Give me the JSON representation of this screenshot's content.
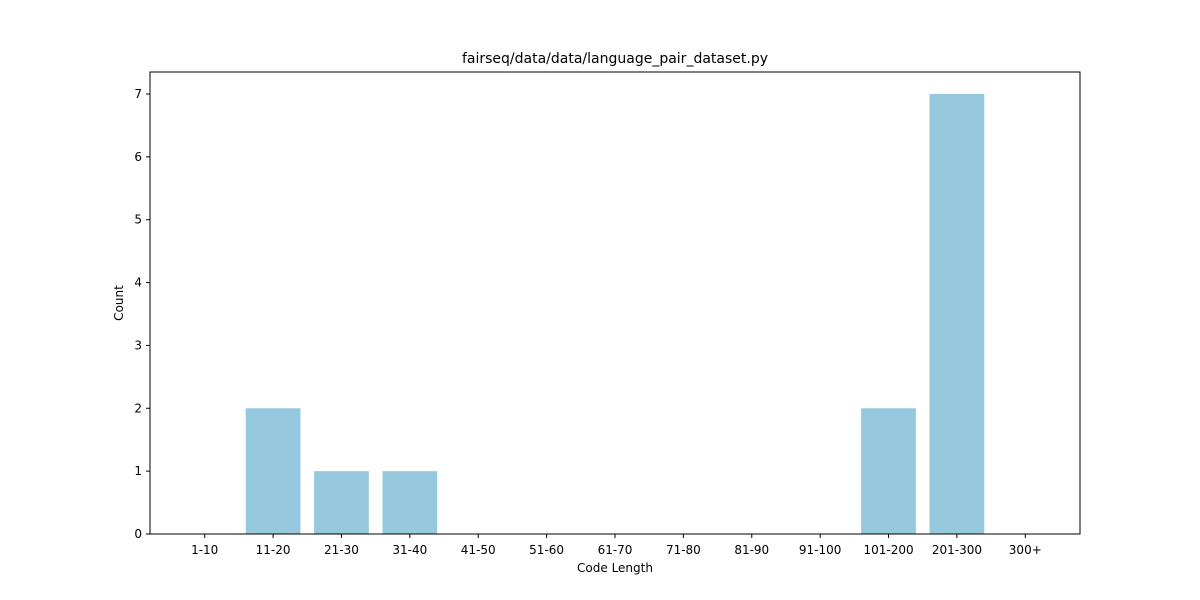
{
  "chart_data": {
    "type": "bar",
    "title": "fairseq/data/data/language_pair_dataset.py",
    "xlabel": "Code Length",
    "ylabel": "Count",
    "categories": [
      "1-10",
      "11-20",
      "21-30",
      "31-40",
      "41-50",
      "51-60",
      "61-70",
      "71-80",
      "81-90",
      "91-100",
      "101-200",
      "201-300",
      "300+"
    ],
    "values": [
      0,
      2,
      1,
      1,
      0,
      0,
      0,
      0,
      0,
      0,
      2,
      7,
      0
    ],
    "yticks": [
      0,
      1,
      2,
      3,
      4,
      5,
      6,
      7
    ],
    "ylim": [
      0,
      7.35
    ],
    "grid": false,
    "bar_color": "#96c9dd"
  }
}
